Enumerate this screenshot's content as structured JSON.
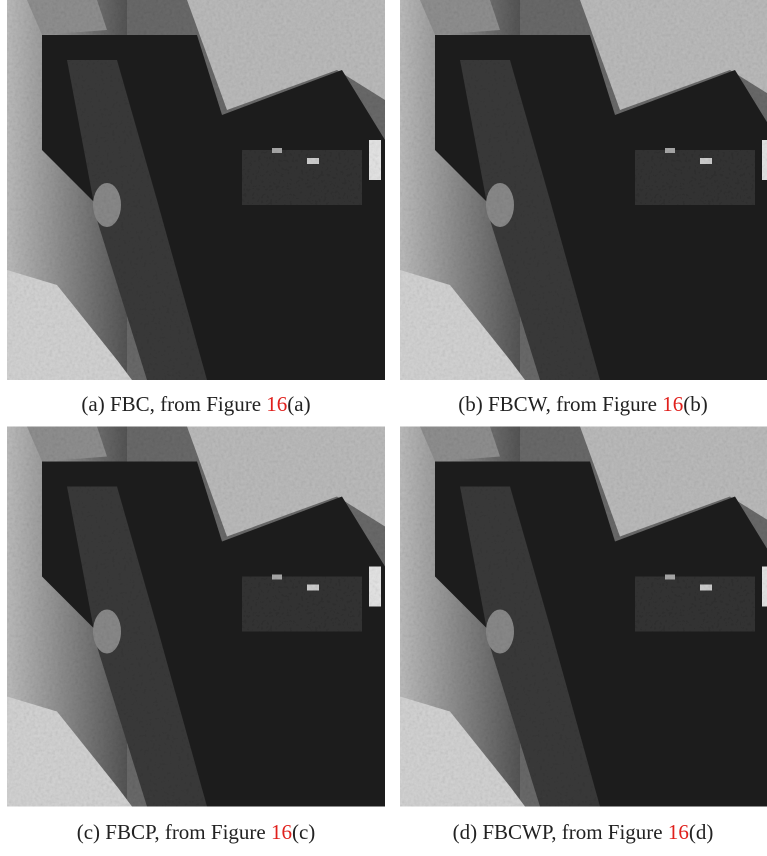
{
  "panels": [
    {
      "prefix": "(a) FBC, from Figure ",
      "ref": "16",
      "suffix": "(a)"
    },
    {
      "prefix": "(b) FBCW, from Figure ",
      "ref": "16",
      "suffix": "(b)"
    },
    {
      "prefix": "(c) FBCP, from Figure ",
      "ref": "16",
      "suffix": "(c)"
    },
    {
      "prefix": "(d) FBCWP, from Figure ",
      "ref": "16",
      "suffix": "(d)"
    }
  ]
}
